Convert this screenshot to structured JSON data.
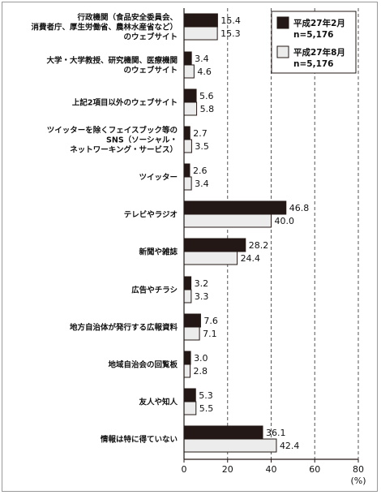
{
  "chart_data": {
    "type": "bar",
    "orientation": "horizontal",
    "categories": [
      [
        "行政機関（食品安全委員会、",
        "消費者庁、厚生労働省、農林水産省など）",
        "のウェブサイト"
      ],
      [
        "大学・大学教授、研究機関、医療機関",
        "のウェブサイト"
      ],
      [
        "上記2項目以外のウェブサイト"
      ],
      [
        "ツイッターを除くフェイスブック等の",
        "SNS（ソーシャル・",
        "ネットワーキング・サービス）"
      ],
      [
        "ツイッター"
      ],
      [
        "テレビやラジオ"
      ],
      [
        "新聞や雑誌"
      ],
      [
        "広告やチラシ"
      ],
      [
        "地方自治体が発行する広報資料"
      ],
      [
        "地域自治会の回覧板"
      ],
      [
        "友人や知人"
      ],
      [
        "情報は特に得ていない"
      ]
    ],
    "series": [
      {
        "name": "平成27年2月",
        "n_label": "n=5,176",
        "color": "#231815",
        "values": [
          15.4,
          3.4,
          5.6,
          2.7,
          2.6,
          46.8,
          28.2,
          3.2,
          7.6,
          3.0,
          5.3,
          36.1
        ]
      },
      {
        "name": "平成27年8月",
        "n_label": "n=5,176",
        "color": "#ececec",
        "values": [
          15.3,
          4.6,
          5.8,
          3.5,
          3.4,
          40.0,
          24.4,
          3.3,
          7.1,
          2.8,
          5.5,
          42.4
        ]
      }
    ],
    "value_labels": [
      [
        "15.4",
        "3.4",
        "5.6",
        "2.7",
        "2.6",
        "46.8",
        "28.2",
        "3.2",
        "7.6",
        "3.0",
        "5.3",
        "36.1"
      ],
      [
        "15.3",
        "4.6",
        "5.8",
        "3.5",
        "3.4",
        "40.0",
        "24.4",
        "3.3",
        "7.1",
        "2.8",
        "5.5",
        "42.4"
      ]
    ],
    "xlim": [
      0,
      80
    ],
    "xticks": [
      "0",
      "20",
      "40",
      "60",
      "80"
    ],
    "xunit": "(%)",
    "grid": "dashed vertical",
    "legend_position": "top-right"
  }
}
